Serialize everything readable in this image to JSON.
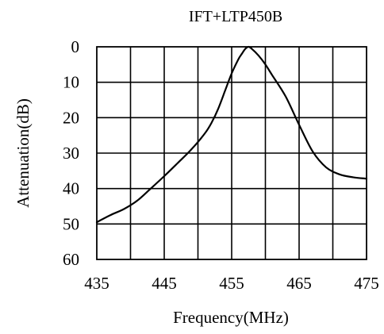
{
  "chart_data": {
    "type": "line",
    "title": "IFT+LTP450B",
    "xlabel": "Frequency(MHz)",
    "ylabel": "Attenuation(dB)",
    "xlim": [
      435,
      475
    ],
    "ylim": [
      0,
      60
    ],
    "y_inverted": true,
    "grid": true,
    "x_ticks": [
      435,
      445,
      455,
      465,
      475
    ],
    "y_ticks": [
      0,
      10,
      20,
      30,
      40,
      50,
      60
    ],
    "x_grid_step": 5,
    "series": [
      {
        "x": [
          435,
          437,
          439,
          441,
          443,
          445,
          447,
          449,
          451,
          452,
          453,
          454,
          455,
          456,
          456.5,
          457,
          457.5,
          458,
          459,
          460,
          461,
          463,
          465,
          467,
          469,
          471,
          473,
          475
        ],
        "y": [
          49.5,
          47.5,
          45.8,
          43.4,
          40,
          36.5,
          32.8,
          29,
          24.5,
          21.5,
          17.5,
          12.5,
          7.5,
          3.5,
          2.0,
          0.6,
          0.0,
          0.6,
          2.5,
          5,
          8,
          14,
          22,
          29.5,
          34,
          36,
          36.8,
          37.2
        ]
      }
    ]
  }
}
